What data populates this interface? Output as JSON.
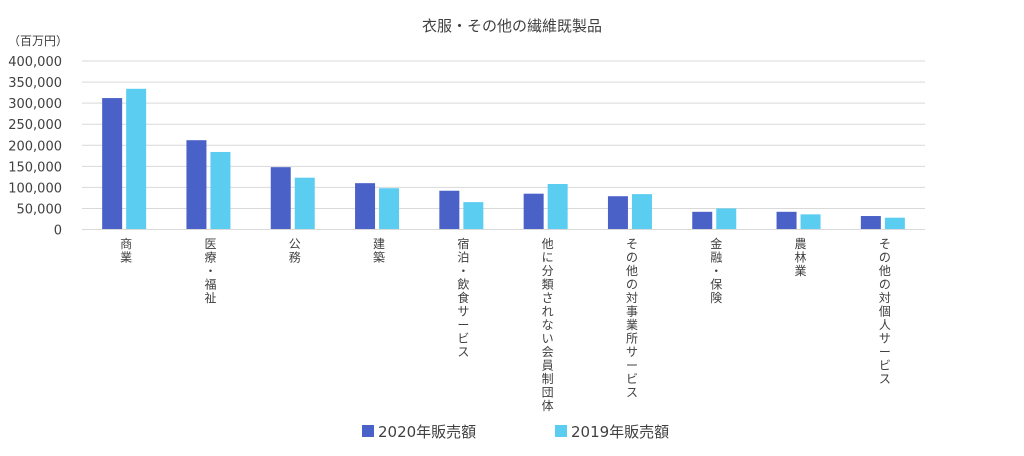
{
  "chart_data": {
    "type": "bar",
    "title": "衣服・その他の繊維既製品",
    "unit_label": "（百万円）",
    "ylim": [
      0,
      400000
    ],
    "yticks": [
      "0",
      "50,000",
      "100,000",
      "150,000",
      "200,000",
      "250,000",
      "300,000",
      "350,000",
      "400,000"
    ],
    "grid": true,
    "legend_position": "bottom",
    "categories": [
      "商業",
      "医療・福祉",
      "公務",
      "建築",
      "宿泊・飲食サービス",
      "他に分類されない会員制団体",
      "その他の対事業所サービス",
      "金融・保険",
      "農林業",
      "その他の対個人サービス"
    ],
    "series": [
      {
        "name": "2020年販売額",
        "color": "#4a62c7",
        "values": [
          312000,
          212000,
          148000,
          110000,
          92000,
          85000,
          79000,
          42000,
          42000,
          32000
        ]
      },
      {
        "name": "2019年販売額",
        "color": "#5bcdf1",
        "values": [
          334000,
          184000,
          123000,
          98000,
          65000,
          108000,
          84000,
          50000,
          36000,
          28000
        ]
      }
    ]
  }
}
